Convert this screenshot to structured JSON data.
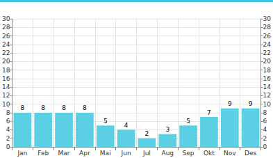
{
  "chart_data": {
    "type": "bar",
    "categories": [
      "Jan",
      "Feb",
      "Mar",
      "Apr",
      "Mai",
      "Jun",
      "Jul",
      "Aug",
      "Sep",
      "Okt",
      "Nov",
      "Des"
    ],
    "values": [
      8,
      8,
      8,
      8,
      5,
      4,
      2,
      3,
      5,
      7,
      9,
      9
    ],
    "color": "#5bcfe3",
    "ylim": [
      0,
      30
    ],
    "yticks": [
      0,
      2,
      4,
      6,
      8,
      10,
      12,
      14,
      16,
      18,
      20,
      22,
      24,
      26,
      28,
      30
    ],
    "y2lim": [
      0,
      30
    ],
    "y2ticks": [
      0,
      2,
      4,
      6,
      8,
      10,
      12,
      14,
      16,
      18,
      20,
      22,
      24,
      26,
      28,
      30
    ],
    "grid": true,
    "data_labels": true
  }
}
